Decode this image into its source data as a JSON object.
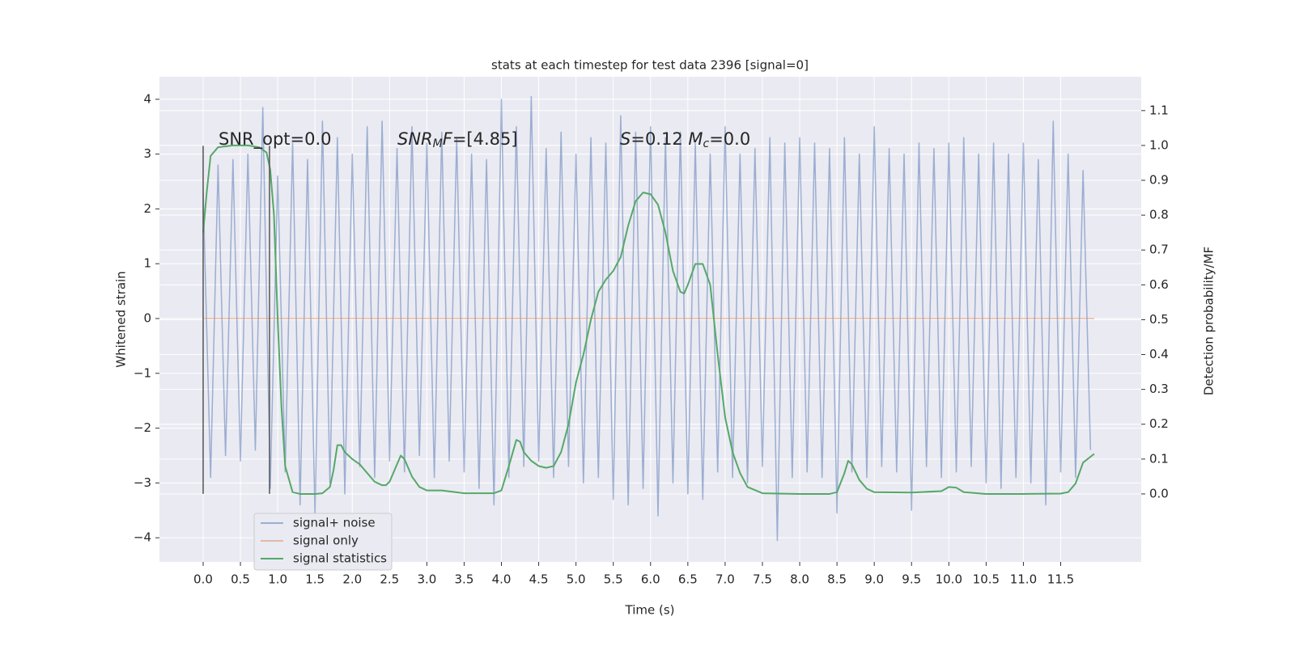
{
  "chart_data": {
    "type": "line",
    "title": "stats at each timestep for test data 2396 [signal=0]",
    "xlabel": "Time (s)",
    "ylabel": "Whitened strain",
    "y2label": "Detection probability/MF",
    "xlim": [
      -0.586,
      12.58
    ],
    "ylim": [
      -4.44,
      4.41
    ],
    "y2lim": [
      -0.195,
      1.197
    ],
    "xticks": [
      {
        "value": 0,
        "label": "0.0"
      },
      0.5,
      {
        "value": 1,
        "label": "1.0"
      },
      1.5,
      {
        "value": 2,
        "label": "2.0"
      },
      2.5,
      {
        "value": 3,
        "label": "3.0"
      },
      3.5,
      {
        "value": 4,
        "label": "4.0"
      },
      4.5,
      {
        "value": 5,
        "label": "5.0"
      },
      5.5,
      {
        "value": 6,
        "label": "6.0"
      },
      6.5,
      {
        "value": 7,
        "label": "7.0"
      },
      7.5,
      {
        "value": 8,
        "label": "8.0"
      },
      8.5,
      {
        "value": 9,
        "label": "9.0"
      },
      9.5,
      {
        "value": 10,
        "label": "10.0"
      },
      10.5,
      {
        "value": 11,
        "label": "11.0"
      },
      11.5
    ],
    "yticks": [
      {
        "value": -4,
        "label": "−4"
      },
      {
        "value": -3,
        "label": "−3"
      },
      {
        "value": -2,
        "label": "−2"
      },
      {
        "value": -1,
        "label": "−1"
      },
      0,
      1,
      2,
      3,
      4
    ],
    "y2ticks": [
      {
        "value": 0,
        "label": "0.0"
      },
      0.1,
      0.2,
      0.3,
      0.4,
      0.5,
      0.6,
      0.7,
      0.8,
      0.9,
      {
        "value": 1,
        "label": "1.0"
      },
      1.1
    ],
    "grid": true,
    "legend_loc": "lower left",
    "annotations": [
      {
        "parts": [
          {
            "text": "SNR_opt=0.0",
            "style": "normal"
          }
        ]
      },
      {
        "parts": [
          {
            "text": "SNR",
            "style": "italic"
          },
          {
            "text": "M",
            "style": "sub"
          },
          {
            "text": "F",
            "style": "italic"
          },
          {
            "text": "=[4.85]",
            "style": "normal"
          }
        ]
      },
      {
        "parts": [
          {
            "text": "S",
            "style": "italic"
          },
          {
            "text": "=0.12   ",
            "style": "normal"
          },
          {
            "text": "M",
            "style": "italic"
          },
          {
            "text": "c",
            "style": "sub"
          },
          {
            "text": "=0.0",
            "style": "normal"
          }
        ]
      }
    ],
    "vlines": {
      "x": [
        0,
        0.89
      ],
      "ymin": -3.2,
      "ymax": 3.15,
      "color": "#555555"
    },
    "series": [
      {
        "name": "signal+ noise",
        "color": "#4c72b0",
        "alpha": 0.5,
        "axis": "y",
        "x": [
          0.0,
          0.1,
          0.2,
          0.3,
          0.4,
          0.5,
          0.6,
          0.7,
          0.8,
          0.9,
          1.0,
          1.1,
          1.2,
          1.3,
          1.4,
          1.5,
          1.6,
          1.7,
          1.8,
          1.9,
          2.0,
          2.1,
          2.2,
          2.3,
          2.4,
          2.5,
          2.6,
          2.7,
          2.8,
          2.9,
          3.0,
          3.1,
          3.2,
          3.3,
          3.4,
          3.5,
          3.6,
          3.7,
          3.8,
          3.9,
          4.0,
          4.1,
          4.2,
          4.3,
          4.4,
          4.5,
          4.6,
          4.7,
          4.8,
          4.9,
          5.0,
          5.1,
          5.2,
          5.3,
          5.4,
          5.5,
          5.6,
          5.7,
          5.8,
          5.9,
          6.0,
          6.1,
          6.2,
          6.3,
          6.4,
          6.5,
          6.6,
          6.7,
          6.8,
          6.9,
          7.0,
          7.1,
          7.2,
          7.3,
          7.4,
          7.5,
          7.6,
          7.7,
          7.8,
          7.9,
          8.0,
          8.1,
          8.2,
          8.3,
          8.4,
          8.5,
          8.6,
          8.7,
          8.8,
          8.9,
          9.0,
          9.1,
          9.2,
          9.3,
          9.4,
          9.5,
          9.6,
          9.7,
          9.8,
          9.9,
          10.0,
          10.1,
          10.2,
          10.3,
          10.4,
          10.5,
          10.6,
          10.7,
          10.8,
          10.9,
          11.0,
          11.1,
          11.2,
          11.3,
          11.4,
          11.5,
          11.6,
          11.7,
          11.8,
          11.9
        ],
        "values": [
          2.3,
          -2.9,
          2.8,
          -2.5,
          2.9,
          -2.6,
          3.0,
          -2.4,
          3.85,
          -3.1,
          2.6,
          -2.8,
          3.2,
          -3.4,
          2.9,
          -3.6,
          3.6,
          -3.0,
          3.3,
          -3.2,
          3.0,
          -2.7,
          3.5,
          -2.9,
          3.6,
          -2.6,
          3.1,
          -2.8,
          3.5,
          -2.5,
          3.2,
          -2.9,
          3.4,
          -2.6,
          3.3,
          -2.8,
          3.0,
          -3.1,
          2.9,
          -3.4,
          4.0,
          -2.9,
          3.5,
          -2.7,
          4.05,
          -2.6,
          3.1,
          -2.9,
          3.4,
          -2.7,
          3.0,
          -3.0,
          3.3,
          -2.9,
          3.2,
          -3.3,
          3.7,
          -3.4,
          3.4,
          -3.1,
          3.5,
          -3.6,
          3.3,
          -3.0,
          3.4,
          -3.2,
          3.2,
          -3.3,
          3.0,
          -2.8,
          3.5,
          -2.9,
          3.0,
          -3.0,
          3.1,
          -2.7,
          3.3,
          -4.05,
          3.2,
          -2.9,
          3.3,
          -2.8,
          3.2,
          -2.9,
          3.1,
          -3.55,
          3.3,
          -2.8,
          3.0,
          -2.9,
          3.5,
          -2.7,
          3.1,
          -2.8,
          3.0,
          -3.5,
          3.2,
          -2.7,
          3.1,
          -2.9,
          3.2,
          -2.8,
          3.3,
          -2.7,
          3.0,
          -3.0,
          3.2,
          -3.1,
          3.0,
          -2.9,
          3.2,
          -3.0,
          2.9,
          -3.4,
          3.6,
          -2.8,
          3.0,
          -2.9,
          2.7,
          -2.4
        ]
      },
      {
        "name": "signal only",
        "color": "#dd8452",
        "alpha": 0.5,
        "axis": "y",
        "x": [
          0,
          11.95
        ],
        "values": [
          0,
          0
        ]
      },
      {
        "name": "signal statistics",
        "color": "#55a868",
        "alpha": 1,
        "axis": "y2",
        "x": [
          0,
          0.05,
          0.1,
          0.2,
          0.4,
          0.6,
          0.75,
          0.85,
          0.9,
          0.95,
          1.0,
          1.05,
          1.1,
          1.2,
          1.3,
          1.5,
          1.6,
          1.7,
          1.75,
          1.8,
          1.85,
          1.9,
          2.0,
          2.1,
          2.2,
          2.3,
          2.4,
          2.45,
          2.5,
          2.55,
          2.65,
          2.7,
          2.8,
          2.9,
          3.0,
          3.2,
          3.5,
          3.9,
          4.0,
          4.1,
          4.2,
          4.25,
          4.3,
          4.4,
          4.5,
          4.6,
          4.7,
          4.8,
          4.9,
          5.0,
          5.1,
          5.2,
          5.3,
          5.4,
          5.5,
          5.6,
          5.7,
          5.8,
          5.9,
          6.0,
          6.1,
          6.2,
          6.3,
          6.4,
          6.45,
          6.5,
          6.6,
          6.7,
          6.8,
          6.9,
          7.0,
          7.1,
          7.2,
          7.3,
          7.5,
          8.0,
          8.4,
          8.5,
          8.6,
          8.65,
          8.7,
          8.8,
          8.9,
          9.0,
          9.5,
          9.9,
          10.0,
          10.1,
          10.2,
          10.5,
          11.0,
          11.5,
          11.6,
          11.7,
          11.8,
          11.95
        ],
        "values": [
          0.75,
          0.87,
          0.97,
          0.995,
          1.0,
          1.0,
          0.995,
          0.98,
          0.93,
          0.8,
          0.5,
          0.25,
          0.08,
          0.005,
          0.0,
          0.0,
          0.002,
          0.02,
          0.07,
          0.14,
          0.14,
          0.12,
          0.1,
          0.085,
          0.06,
          0.035,
          0.025,
          0.025,
          0.035,
          0.06,
          0.11,
          0.1,
          0.05,
          0.02,
          0.01,
          0.01,
          0.002,
          0.002,
          0.01,
          0.08,
          0.155,
          0.15,
          0.12,
          0.095,
          0.08,
          0.075,
          0.08,
          0.12,
          0.2,
          0.32,
          0.4,
          0.5,
          0.58,
          0.615,
          0.64,
          0.68,
          0.77,
          0.84,
          0.865,
          0.86,
          0.83,
          0.75,
          0.64,
          0.58,
          0.575,
          0.6,
          0.66,
          0.66,
          0.6,
          0.4,
          0.22,
          0.12,
          0.06,
          0.02,
          0.002,
          0.0,
          0.0,
          0.005,
          0.06,
          0.095,
          0.085,
          0.04,
          0.015,
          0.005,
          0.004,
          0.008,
          0.02,
          0.018,
          0.005,
          0.0,
          0.0,
          0.001,
          0.005,
          0.03,
          0.09,
          0.115
        ]
      }
    ]
  }
}
